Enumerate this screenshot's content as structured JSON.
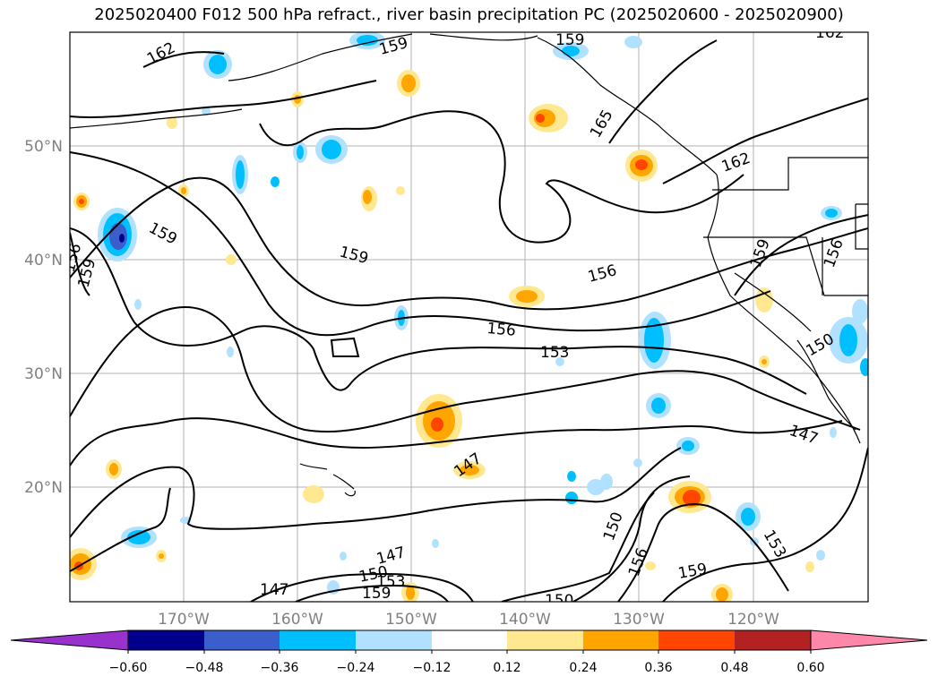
{
  "title": "2025020400 F012 500 hPa refract., river basin precipitation PC (2025020600 - 2025020900)",
  "latitude_labels": [
    "50°N",
    "40°N",
    "30°N",
    "20°N"
  ],
  "longitude_labels": [
    "170°W",
    "160°W",
    "150°W",
    "140°W",
    "130°W",
    "120°W"
  ],
  "contour_labels": [
    "162",
    "159",
    "162",
    "159",
    "165",
    "162",
    "156",
    "159",
    "159",
    "156",
    "159",
    "156",
    "153",
    "159",
    "156",
    "150",
    "147",
    "147",
    "150",
    "147",
    "156",
    "150",
    "153",
    "159",
    "159",
    "153",
    "147",
    "150"
  ],
  "colorbar": {
    "ticks": [
      "−0.60",
      "−0.48",
      "−0.36",
      "−0.24",
      "−0.12",
      "0.12",
      "0.24",
      "0.36",
      "0.48",
      "0.60"
    ],
    "colors": [
      "#9932cc",
      "#00008b",
      "#3a5fcd",
      "#00bfff",
      "#b0e2ff",
      "#ffffff",
      "#ffe890",
      "#ffa500",
      "#ff4500",
      "#b22222",
      "#ff88aa"
    ]
  }
}
